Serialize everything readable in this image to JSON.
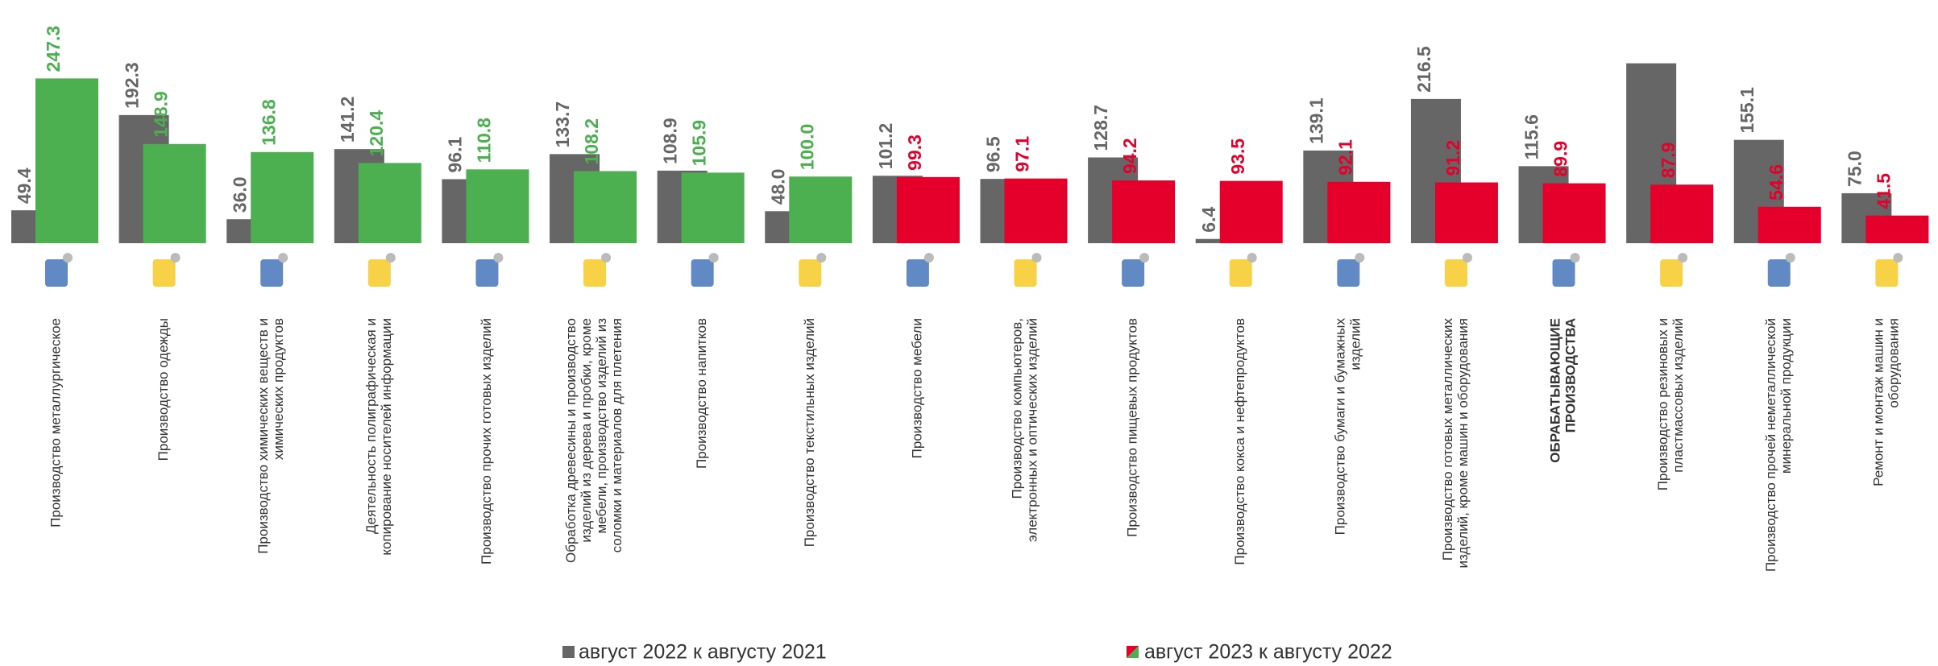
{
  "chart_data": {
    "type": "bar",
    "categories": [
      [
        "Производство металлургическое"
      ],
      [
        "Производство одежды"
      ],
      [
        "Производство химических веществ и",
        "химических продуктов"
      ],
      [
        "Деятельность полиграфическая и",
        "копирование носителей информации"
      ],
      [
        "Производство прочих готовых изделий"
      ],
      [
        "Обработка древесины и производство",
        "изделий из дерева и пробки, кроме",
        "мебели, производство изделий из",
        "соломки и материалов для плетения"
      ],
      [
        "Производство напитков"
      ],
      [
        "Производство текстильных изделий"
      ],
      [
        "Производство мебели"
      ],
      [
        "Производство компьютеров,",
        "электронных и оптических изделий"
      ],
      [
        "Производство пищевых продуктов"
      ],
      [
        "Производство кокса и нефтепродуктов"
      ],
      [
        "Производство бумаги и бумажных",
        "изделий"
      ],
      [
        "Производство готовых металлических",
        "изделий, кроме машин и оборудования"
      ],
      [
        "ОБРАБАТЫВАЮЩИЕ",
        "ПРОИЗВОДСТВА"
      ],
      [
        "Производство резиновых и",
        "пластмассовых изделий"
      ],
      [
        "Производство прочей неметаллической",
        "минеральной продукции"
      ],
      [
        "Ремонт и монтаж машин и",
        "оборудования"
      ]
    ],
    "bold_category": 14,
    "series": [
      {
        "name": "август 2022 к августу 2021",
        "color": "#666666",
        "values": [
          49.4,
          192.3,
          36.0,
          141.2,
          96.1,
          133.7,
          108.9,
          48.0,
          101.2,
          96.5,
          128.7,
          6.4,
          139.1,
          216.5,
          115.6,
          270,
          155.1,
          75.0
        ],
        "value_labels": [
          "49.4",
          "192.3",
          "36.0",
          "141.2",
          "96.1",
          "133.7",
          "108.9",
          "48.0",
          "101.2",
          "96.5",
          "128.7",
          "6.4",
          "139.1",
          "216.5",
          "115.6",
          null,
          "155.1",
          "75.0"
        ]
      },
      {
        "name": "август 2023 к августу 2022",
        "color": "#4caf50",
        "colors": [
          "#4caf50",
          "#4caf50",
          "#4caf50",
          "#4caf50",
          "#4caf50",
          "#4caf50",
          "#4caf50",
          "#4caf50",
          "#e4002b",
          "#e4002b",
          "#e4002b",
          "#e4002b",
          "#e4002b",
          "#e4002b",
          "#e4002b",
          "#e4002b",
          "#e4002b",
          "#e4002b"
        ],
        "values": [
          247.3,
          148.9,
          136.8,
          120.4,
          110.8,
          108.2,
          105.9,
          100.0,
          99.3,
          97.1,
          94.2,
          93.5,
          92.1,
          91.2,
          89.9,
          87.9,
          54.6,
          41.5
        ],
        "value_labels": [
          "247.3",
          "148.9",
          "136.8",
          "120.4",
          "110.8",
          "108.2",
          "105.9",
          "100.0",
          "99.3",
          "97.1",
          "94.2",
          "93.5",
          "92.1",
          "91.2",
          "89.9",
          "87.9",
          "54.6",
          "41.5"
        ]
      }
    ],
    "ylim": [
      0,
      365
    ]
  }
}
